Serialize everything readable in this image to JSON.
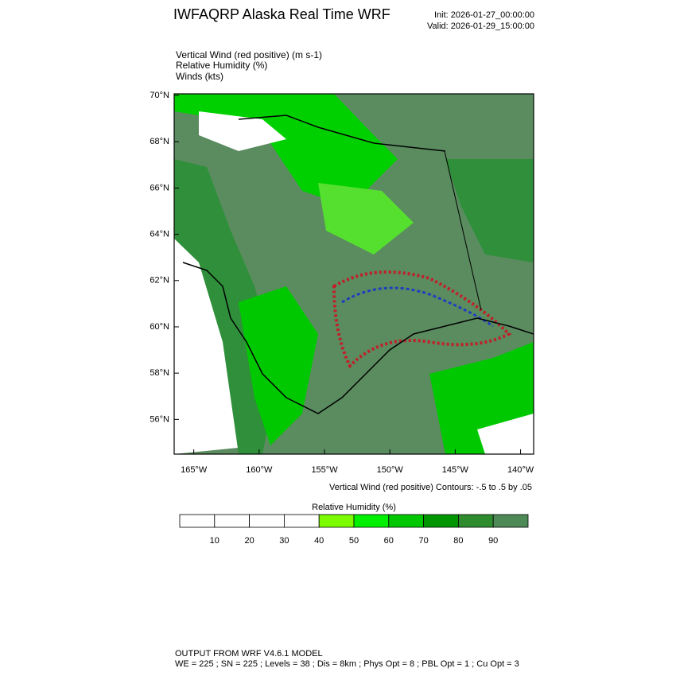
{
  "header": {
    "title": "IWFAQRP Alaska Real Time WRF",
    "init": "Init: 2026-01-27_00:00:00",
    "valid": "Valid: 2026-01-29_15:00:00"
  },
  "fields": [
    "Vertical Wind (red positive)   (m s-1)",
    "Relative Humidity   (%)",
    "Winds   (kts)"
  ],
  "map": {
    "xlim": [
      -166.5,
      -139.0
    ],
    "ylim": [
      54.5,
      70.07
    ],
    "xticks": [
      {
        "value": -165,
        "label": "165°W"
      },
      {
        "value": -160,
        "label": "160°W"
      },
      {
        "value": -155,
        "label": "155°W"
      },
      {
        "value": -150,
        "label": "150°W"
      },
      {
        "value": -145,
        "label": "145°W"
      },
      {
        "value": -140,
        "label": "140°W"
      }
    ],
    "yticks": [
      {
        "value": 56,
        "label": "56°N"
      },
      {
        "value": 58,
        "label": "58°N"
      },
      {
        "value": 60,
        "label": "60°N"
      },
      {
        "value": 62,
        "label": "62°N"
      },
      {
        "value": 64,
        "label": "64°N"
      },
      {
        "value": 66,
        "label": "66°N"
      },
      {
        "value": 68,
        "label": "68°N"
      },
      {
        "value": 70,
        "label": "70°N"
      }
    ],
    "contour_note": "Vertical Wind (red positive) Contours: -.5 to .5 by .05"
  },
  "colorbar": {
    "title": "Relative Humidity  (%)",
    "range": [
      0,
      100
    ],
    "ticks": [
      10,
      20,
      30,
      40,
      50,
      60,
      70,
      80,
      90
    ],
    "colors": [
      "#ffffff",
      "#ffffff",
      "#ffffff",
      "#ffffff",
      "#7cfc00",
      "#00f000",
      "#00c800",
      "#009600",
      "#2e8b2e",
      "#4e8a58"
    ]
  },
  "footer": {
    "line1": "OUTPUT FROM WRF V4.6.1 MODEL",
    "line2": "WE = 225 ; SN = 225 ; Levels = 38 ; Dis = 8km ; Phys Opt = 8 ; PBL Opt = 1 ; Cu Opt = 3"
  }
}
